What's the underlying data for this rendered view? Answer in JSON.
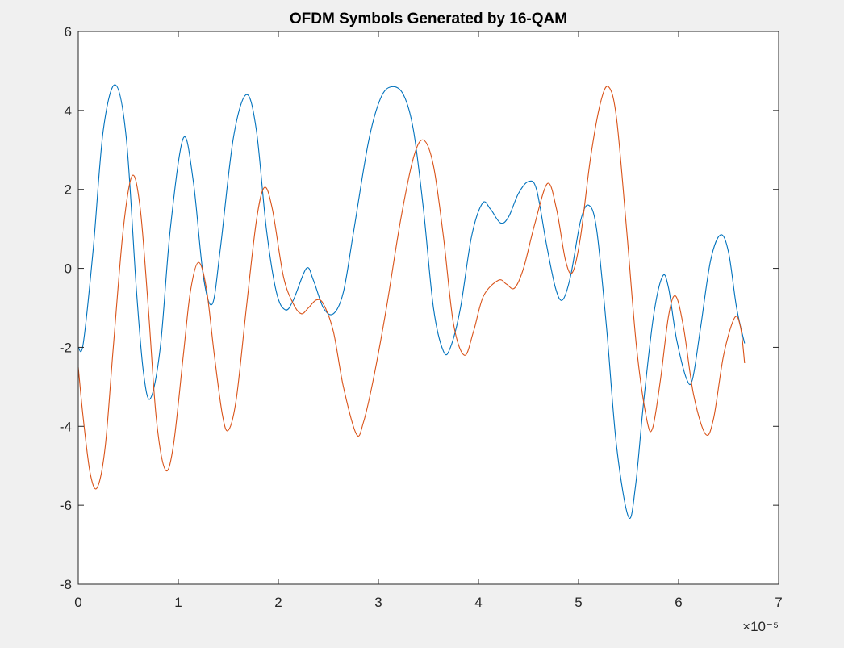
{
  "chart_data": {
    "type": "line",
    "title": "OFDM Symbols Generated by 16-QAM",
    "xlabel": "",
    "ylabel": "",
    "xlim": [
      0,
      7
    ],
    "ylim": [
      -8,
      6
    ],
    "x_exponent_label": "×10⁻⁵",
    "x_ticks": [
      "0",
      "1",
      "2",
      "3",
      "4",
      "5",
      "6",
      "7"
    ],
    "y_ticks": [
      "-8",
      "-6",
      "-4",
      "-2",
      "0",
      "2",
      "4",
      "6"
    ],
    "grid": false,
    "legend": "none",
    "series": [
      {
        "color": "#0072bd",
        "points": [
          [
            0.0,
            -2.0
          ],
          [
            0.05,
            -1.9
          ],
          [
            0.15,
            0.5
          ],
          [
            0.25,
            3.5
          ],
          [
            0.37,
            4.65
          ],
          [
            0.48,
            3.3
          ],
          [
            0.58,
            -0.5
          ],
          [
            0.65,
            -2.6
          ],
          [
            0.72,
            -3.3
          ],
          [
            0.82,
            -2.0
          ],
          [
            0.92,
            1.0
          ],
          [
            1.05,
            3.3
          ],
          [
            1.15,
            2.2
          ],
          [
            1.25,
            -0.2
          ],
          [
            1.34,
            -0.9
          ],
          [
            1.42,
            0.5
          ],
          [
            1.55,
            3.3
          ],
          [
            1.68,
            4.4
          ],
          [
            1.78,
            3.5
          ],
          [
            1.88,
            1.0
          ],
          [
            1.98,
            -0.6
          ],
          [
            2.07,
            -1.05
          ],
          [
            2.15,
            -0.8
          ],
          [
            2.28,
            0.0
          ],
          [
            2.35,
            -0.3
          ],
          [
            2.45,
            -1.0
          ],
          [
            2.55,
            -1.15
          ],
          [
            2.65,
            -0.6
          ],
          [
            2.75,
            0.9
          ],
          [
            2.9,
            3.2
          ],
          [
            3.02,
            4.3
          ],
          [
            3.13,
            4.6
          ],
          [
            3.25,
            4.4
          ],
          [
            3.35,
            3.5
          ],
          [
            3.45,
            1.5
          ],
          [
            3.55,
            -1.0
          ],
          [
            3.65,
            -2.1
          ],
          [
            3.72,
            -2.0
          ],
          [
            3.82,
            -1.0
          ],
          [
            3.93,
            0.8
          ],
          [
            4.04,
            1.65
          ],
          [
            4.12,
            1.5
          ],
          [
            4.22,
            1.15
          ],
          [
            4.3,
            1.3
          ],
          [
            4.4,
            1.9
          ],
          [
            4.5,
            2.2
          ],
          [
            4.58,
            2.0
          ],
          [
            4.68,
            0.6
          ],
          [
            4.77,
            -0.5
          ],
          [
            4.84,
            -0.8
          ],
          [
            4.92,
            -0.2
          ],
          [
            5.02,
            1.2
          ],
          [
            5.1,
            1.6
          ],
          [
            5.18,
            1.0
          ],
          [
            5.28,
            -1.5
          ],
          [
            5.38,
            -4.5
          ],
          [
            5.5,
            -6.3
          ],
          [
            5.57,
            -5.5
          ],
          [
            5.65,
            -3.4
          ],
          [
            5.75,
            -1.2
          ],
          [
            5.84,
            -0.2
          ],
          [
            5.9,
            -0.5
          ],
          [
            5.98,
            -1.8
          ],
          [
            6.08,
            -2.8
          ],
          [
            6.14,
            -2.8
          ],
          [
            6.22,
            -1.5
          ],
          [
            6.32,
            0.2
          ],
          [
            6.42,
            0.85
          ],
          [
            6.5,
            0.4
          ],
          [
            6.58,
            -1.0
          ],
          [
            6.66,
            -1.9
          ]
        ]
      },
      {
        "color": "#d95319",
        "points": [
          [
            0.0,
            -2.5
          ],
          [
            0.05,
            -3.8
          ],
          [
            0.12,
            -5.2
          ],
          [
            0.19,
            -5.55
          ],
          [
            0.27,
            -4.5
          ],
          [
            0.35,
            -2.0
          ],
          [
            0.45,
            1.0
          ],
          [
            0.54,
            2.35
          ],
          [
            0.62,
            1.5
          ],
          [
            0.7,
            -1.0
          ],
          [
            0.78,
            -3.8
          ],
          [
            0.87,
            -5.1
          ],
          [
            0.95,
            -4.5
          ],
          [
            1.05,
            -2.2
          ],
          [
            1.12,
            -0.6
          ],
          [
            1.2,
            0.15
          ],
          [
            1.28,
            -0.5
          ],
          [
            1.36,
            -2.2
          ],
          [
            1.44,
            -3.7
          ],
          [
            1.5,
            -4.1
          ],
          [
            1.58,
            -3.3
          ],
          [
            1.68,
            -1.0
          ],
          [
            1.78,
            1.2
          ],
          [
            1.86,
            2.05
          ],
          [
            1.94,
            1.5
          ],
          [
            2.05,
            -0.2
          ],
          [
            2.15,
            -0.9
          ],
          [
            2.23,
            -1.15
          ],
          [
            2.3,
            -1.0
          ],
          [
            2.38,
            -0.8
          ],
          [
            2.45,
            -0.9
          ],
          [
            2.55,
            -1.6
          ],
          [
            2.65,
            -3.0
          ],
          [
            2.78,
            -4.2
          ],
          [
            2.85,
            -3.9
          ],
          [
            2.95,
            -2.8
          ],
          [
            3.08,
            -1.0
          ],
          [
            3.22,
            1.2
          ],
          [
            3.35,
            2.8
          ],
          [
            3.45,
            3.25
          ],
          [
            3.55,
            2.6
          ],
          [
            3.65,
            0.8
          ],
          [
            3.75,
            -1.4
          ],
          [
            3.86,
            -2.2
          ],
          [
            3.95,
            -1.6
          ],
          [
            4.05,
            -0.7
          ],
          [
            4.2,
            -0.3
          ],
          [
            4.28,
            -0.4
          ],
          [
            4.36,
            -0.5
          ],
          [
            4.45,
            0.0
          ],
          [
            4.56,
            1.1
          ],
          [
            4.69,
            2.15
          ],
          [
            4.78,
            1.5
          ],
          [
            4.87,
            0.2
          ],
          [
            4.94,
            -0.1
          ],
          [
            5.02,
            0.8
          ],
          [
            5.12,
            2.8
          ],
          [
            5.22,
            4.2
          ],
          [
            5.3,
            4.6
          ],
          [
            5.38,
            3.8
          ],
          [
            5.48,
            1.0
          ],
          [
            5.58,
            -2.0
          ],
          [
            5.68,
            -3.8
          ],
          [
            5.74,
            -4.05
          ],
          [
            5.82,
            -2.8
          ],
          [
            5.9,
            -1.2
          ],
          [
            5.97,
            -0.7
          ],
          [
            6.05,
            -1.5
          ],
          [
            6.15,
            -3.2
          ],
          [
            6.27,
            -4.2
          ],
          [
            6.35,
            -3.8
          ],
          [
            6.45,
            -2.2
          ],
          [
            6.56,
            -1.25
          ],
          [
            6.62,
            -1.5
          ],
          [
            6.66,
            -2.4
          ]
        ]
      }
    ]
  }
}
